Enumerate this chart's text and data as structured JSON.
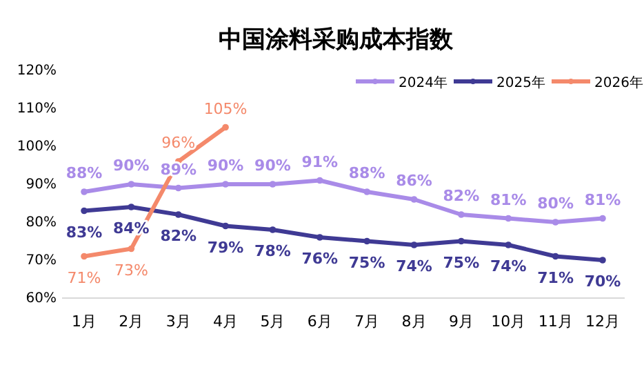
{
  "chart_data": {
    "type": "line",
    "title": "中国涂料采购成本指数",
    "categories": [
      "1月",
      "2月",
      "3月",
      "4月",
      "5月",
      "6月",
      "7月",
      "8月",
      "9月",
      "10月",
      "11月",
      "12月"
    ],
    "series": [
      {
        "name": "2024年",
        "color": "#a98be8",
        "values": [
          88,
          90,
          89,
          90,
          90,
          91,
          88,
          86,
          82,
          81,
          80,
          81
        ],
        "value_labels": [
          "88%",
          "90%",
          "89%",
          "90%",
          "90%",
          "91%",
          "88%",
          "86%",
          "82%",
          "81%",
          "80%",
          "81%"
        ]
      },
      {
        "name": "2025年",
        "color": "#3f3a94",
        "values": [
          83,
          84,
          82,
          79,
          78,
          76,
          75,
          74,
          75,
          74,
          71,
          70
        ],
        "value_labels": [
          "83%",
          "84%",
          "82%",
          "79%",
          "78%",
          "76%",
          "75%",
          "74%",
          "75%",
          "74%",
          "71%",
          "70%"
        ]
      },
      {
        "name": "2026年",
        "color": "#f4896b",
        "values": [
          71,
          73,
          96,
          105,
          null,
          null,
          null,
          null,
          null,
          null,
          null,
          null
        ],
        "value_labels": [
          "71%",
          "73%",
          "96%",
          "105%",
          null,
          null,
          null,
          null,
          null,
          null,
          null,
          null
        ]
      }
    ],
    "ylim": [
      60,
      120
    ],
    "yticks": [
      {
        "value": 60,
        "label": "60%"
      },
      {
        "value": 70,
        "label": "70%"
      },
      {
        "value": 80,
        "label": "80%"
      },
      {
        "value": 90,
        "label": "90%"
      },
      {
        "value": 100,
        "label": "100%"
      },
      {
        "value": 110,
        "label": "110%"
      },
      {
        "value": 120,
        "label": "120%"
      }
    ],
    "grid": false,
    "legend": "top right",
    "marker": "circle",
    "line_style": "solid"
  }
}
